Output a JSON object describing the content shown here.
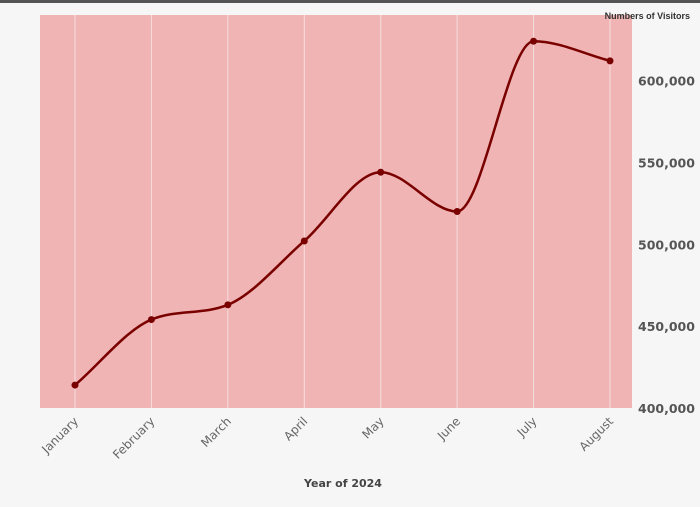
{
  "chart_data": {
    "type": "line",
    "title": "",
    "xlabel": "Year of 2024",
    "ylabel": "Numbers of Visitors",
    "categories": [
      "January",
      "February",
      "March",
      "April",
      "May",
      "June",
      "July",
      "August"
    ],
    "series": [
      {
        "values": [
          414000,
          454000,
          463000,
          502000,
          544000,
          520000,
          624000,
          612000
        ]
      }
    ],
    "ylim": [
      400000,
      640000
    ],
    "yticks": [
      400000,
      450000,
      500000,
      550000,
      600000
    ],
    "ytick_labels": [
      "400,000",
      "450,000",
      "500,000",
      "550,000",
      "600,000"
    ],
    "grid": "vertical",
    "smooth": true,
    "colors": {
      "plot_background": "#f0b4b4",
      "line": "#7a0000",
      "gridline": "#f7dede",
      "page_background": "#f6f6f6"
    }
  }
}
